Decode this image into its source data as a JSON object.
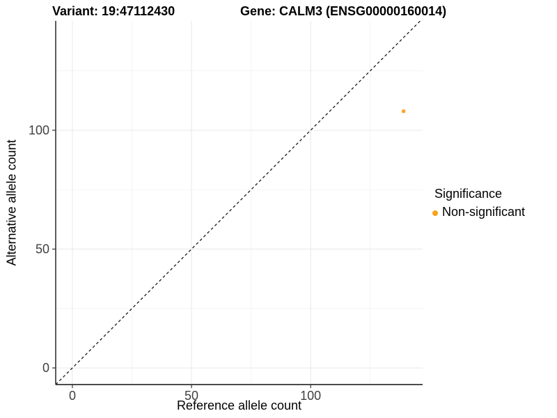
{
  "chart_data": {
    "type": "scatter",
    "title_left": "Variant: 19:47112430",
    "title_right": "Gene: CALM3 (ENSG00000160014)",
    "xlabel": "Reference allele count",
    "ylabel": "Alternative allele count",
    "xlim": [
      -7,
      147
    ],
    "ylim": [
      -7,
      146
    ],
    "x_major_ticks": [
      0,
      50,
      100
    ],
    "y_major_ticks": [
      0,
      50,
      100
    ],
    "x_minor_ticks": [
      25,
      75,
      125
    ],
    "y_minor_ticks": [
      25,
      75,
      125
    ],
    "grid": "on",
    "identity_line": {
      "style": "dashed",
      "slope": 1,
      "intercept": 0,
      "color": "#1a1a1a"
    },
    "series": [
      {
        "name": "Non-significant",
        "color": "#FAA21E",
        "points": [
          {
            "x": 139,
            "y": 108
          }
        ]
      }
    ],
    "legend": {
      "position": "right",
      "title": "Significance",
      "entries": [
        {
          "label": "Non-significant",
          "color": "#FAA21E"
        }
      ]
    },
    "style": {
      "major_grid_color": "#e8e8e8",
      "minor_grid_color": "#f3f3f3",
      "axis_line_color": "#333333",
      "tick_label_color": "#404040",
      "background": "#ffffff"
    }
  }
}
